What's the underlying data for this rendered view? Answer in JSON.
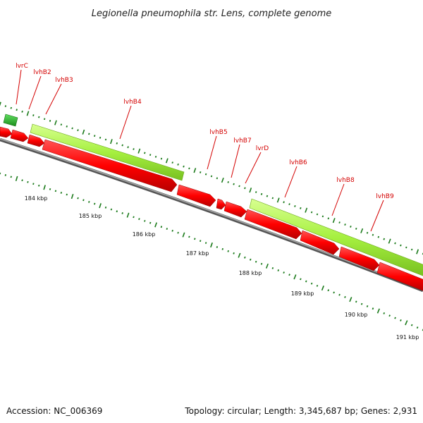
{
  "title": "Legionella pneumophila str. Lens, complete genome",
  "footer": {
    "accession": "Accession: NC_006369",
    "summary": "Topology: circular; Length: 3,345,687 bp; Genes: 2,931"
  },
  "colors": {
    "backbone": "#808080",
    "gene_forward": "#ff0000",
    "gene_cds_band": "#9ef03a",
    "gene_small": "#2db52d",
    "tick": "#1a7a1a",
    "label": "#d40000"
  },
  "scale_labels": [
    "184 kbp",
    "185 kbp",
    "186 kbp",
    "187 kbp",
    "188 kbp",
    "189 kbp",
    "190 kbp",
    "191 kbp"
  ],
  "gene_labels": [
    "lvrC",
    "lvhB2",
    "lvhB3",
    "lvhB4",
    "lvhB5",
    "lvhB7",
    "lvrD",
    "lvhB6",
    "lvhB8",
    "lvhB9"
  ]
}
